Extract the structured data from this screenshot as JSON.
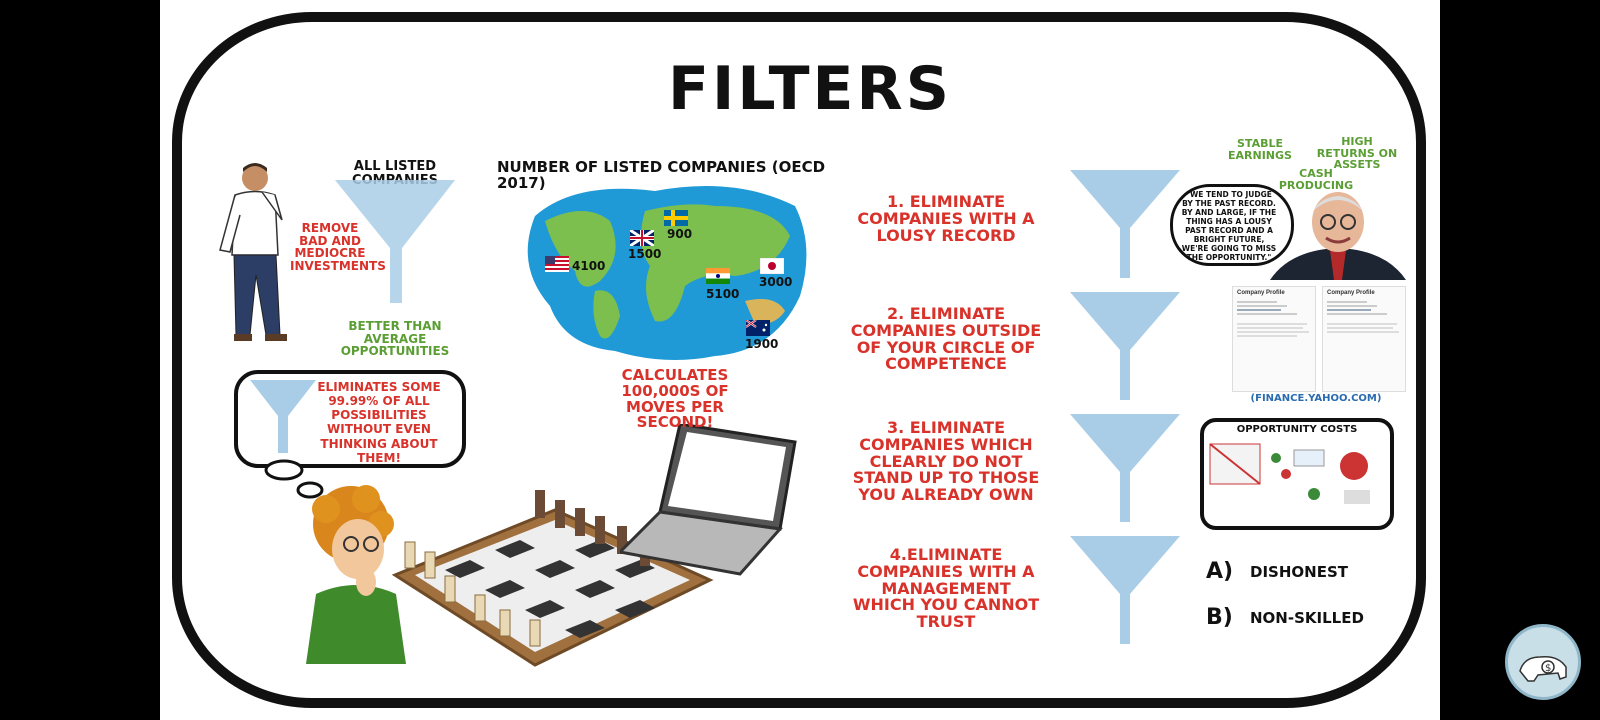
{
  "title": "FILTERS",
  "left": {
    "all_listed_label": "ALL LISTED COMPANIES",
    "remove_label": "REMOVE BAD AND MEDIOCRE INVESTMENTS",
    "better_label": "BETTER THAN AVERAGE OPPORTUNITIES",
    "thought_bubble": "ELIMINATES SOME 99.99% OF ALL POSSIBILITIES WITHOUT EVEN THINKING ABOUT THEM!"
  },
  "map": {
    "heading": "NUMBER OF LISTED COMPANIES (OECD 2017)",
    "countries": [
      {
        "flag": "usa-flag",
        "value": "4100"
      },
      {
        "flag": "uk-flag",
        "value": "1500"
      },
      {
        "flag": "sweden-flag",
        "value": "900"
      },
      {
        "flag": "india-flag",
        "value": "5100"
      },
      {
        "flag": "japan-flag",
        "value": "3000"
      },
      {
        "flag": "australia-flag",
        "value": "1900"
      }
    ]
  },
  "calc_label": "CALCULATES 100,000S OF MOVES PER SECOND!",
  "filters": [
    "1. ELIMINATE COMPANIES WITH A LOUSY RECORD",
    "2. ELIMINATE COMPANIES OUTSIDE OF YOUR CIRCLE OF COMPETENCE",
    "3. ELIMINATE COMPANIES WHICH CLEARLY DO NOT STAND UP TO THOSE YOU ALREADY OWN",
    "4.ELIMINATE COMPANIES WITH A MANAGEMENT WHICH YOU CANNOT TRUST"
  ],
  "right": {
    "stable": "STABLE EARNINGS",
    "high_returns": "HIGH RETURNS ON ASSETS",
    "cash": "CASH PRODUCING",
    "quote": "\"WE TEND TO JUDGE BY THE PAST RECORD. BY AND LARGE, IF THE THING HAS A LOUSY PAST RECORD AND A BRIGHT FUTURE, WE'RE GOING TO MISS THE OPPORTUNITY.\"",
    "profile_left_title": "Company Profile",
    "profile_right_title": "Company Profile",
    "source": "(FINANCE.YAHOO.COM)",
    "opportunity_title": "OPPORTUNITY COSTS",
    "a_letter": "A)",
    "a_label": "DISHONEST",
    "b_letter": "B)",
    "b_label": "NON-SKILLED"
  },
  "colors": {
    "red": "#d8322a",
    "green": "#5a9e34",
    "funnel": "#a9cde6",
    "ocean": "#1f9ad6",
    "land": "#7cbf4f"
  }
}
